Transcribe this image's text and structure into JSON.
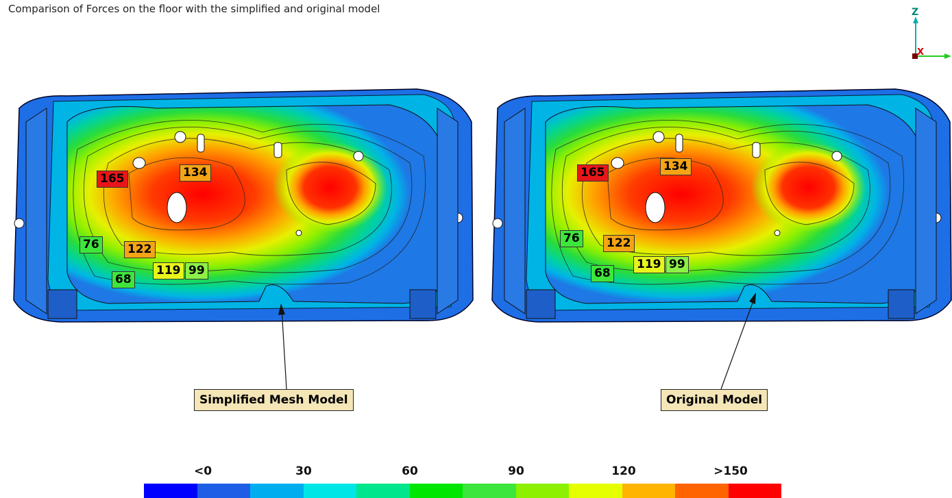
{
  "header": {
    "caption": "Comparison of Forces on the floor with the simplified and original model"
  },
  "models": [
    {
      "name": "simplified",
      "label": "Simplified Mesh Model",
      "values": [
        "165",
        "134",
        "76",
        "122",
        "68",
        "119",
        "99"
      ]
    },
    {
      "name": "original",
      "label": "Original Model",
      "values": [
        "165",
        "134",
        "76",
        "122",
        "68",
        "119",
        "99"
      ]
    }
  ],
  "legend": {
    "labels": [
      "<0",
      "30",
      "60",
      "90",
      "120",
      ">150"
    ],
    "colors": [
      "#0000ff",
      "#1e5ee6",
      "#00aef0",
      "#00e6e6",
      "#00e68c",
      "#00e600",
      "#3ce63c",
      "#8cf000",
      "#e6ff00",
      "#ffb400",
      "#ff6400",
      "#ff0000"
    ]
  },
  "axes": {
    "z": "Z",
    "x": "X"
  },
  "tag_colors": {
    "165": "#e8161a",
    "134": "#f4a414",
    "76": "#3ee63c",
    "122": "#f4a414",
    "68": "#3ee63c",
    "119": "#e8f51c",
    "99": "#8cf046"
  }
}
